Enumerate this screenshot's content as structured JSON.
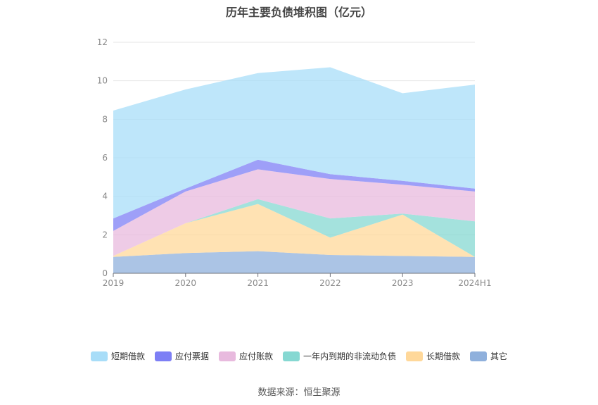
{
  "title": "历年主要负债堆积图（亿元）",
  "source_text": "数据来源：恒生聚源",
  "chart_data": {
    "type": "area",
    "stacked": true,
    "categories": [
      "2019",
      "2020",
      "2021",
      "2022",
      "2023",
      "2024H1"
    ],
    "ylim": [
      0,
      12
    ],
    "yticks": [
      0,
      2,
      4,
      6,
      8,
      10,
      12
    ],
    "grid": true,
    "legend_position": "bottom",
    "series": [
      {
        "name": "其它",
        "color": "#8fb0dc",
        "values": [
          0.85,
          1.05,
          1.15,
          0.95,
          0.9,
          0.85
        ]
      },
      {
        "name": "长期借款",
        "color": "#ffd89a",
        "values": [
          0.05,
          1.55,
          2.45,
          0.9,
          2.15,
          0.0
        ]
      },
      {
        "name": "一年内到期的非流动负债",
        "color": "#86d8d2",
        "values": [
          0.0,
          0.0,
          0.25,
          1.0,
          0.05,
          1.85
        ]
      },
      {
        "name": "应付账款",
        "color": "#e8bade",
        "values": [
          1.3,
          1.65,
          1.55,
          2.05,
          1.5,
          1.55
        ]
      },
      {
        "name": "应付票据",
        "color": "#7d7ff5",
        "values": [
          0.65,
          0.15,
          0.5,
          0.25,
          0.2,
          0.15
        ]
      },
      {
        "name": "短期借款",
        "color": "#a8ddf8",
        "values": [
          5.6,
          5.15,
          4.5,
          5.55,
          4.55,
          5.4
        ]
      }
    ]
  }
}
